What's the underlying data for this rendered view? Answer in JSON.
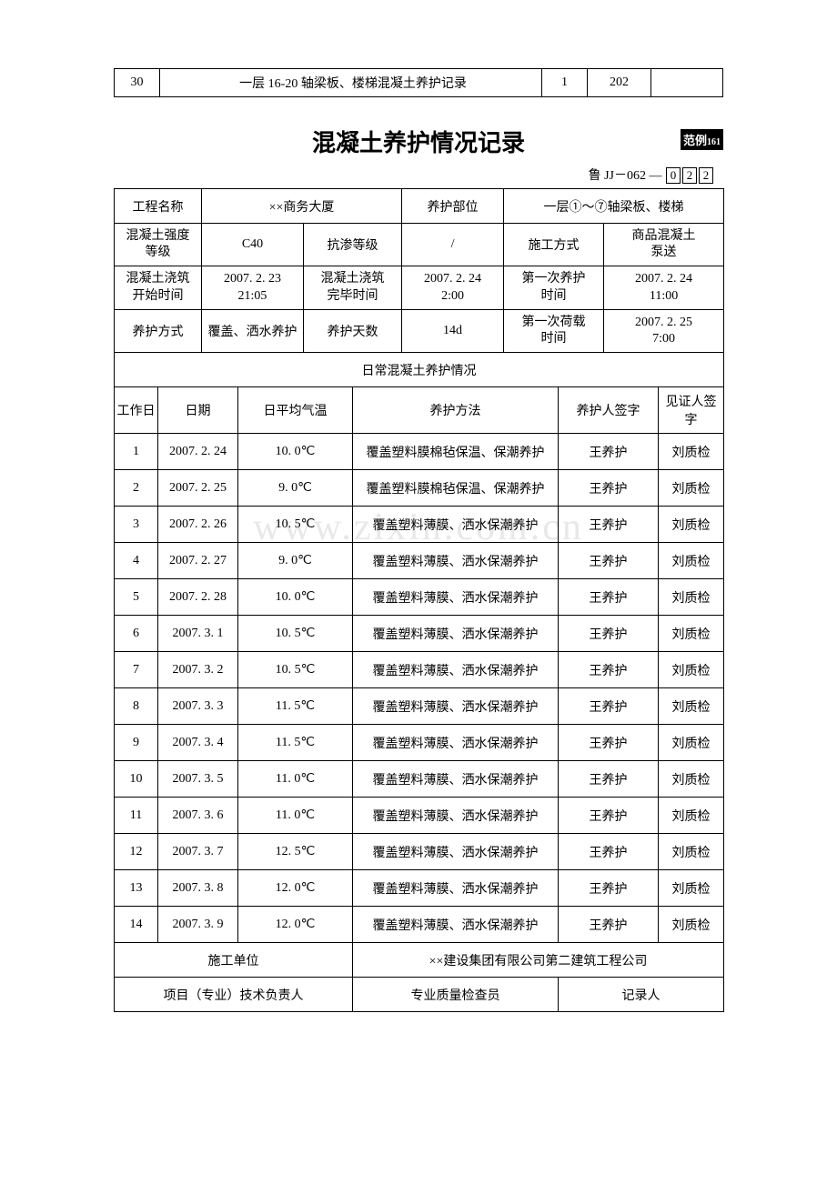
{
  "top_row": {
    "c1": "30",
    "c2": "一层 16-20 轴梁板、楼梯混凝土养护记录",
    "c3": "1",
    "c4": "202",
    "c5": ""
  },
  "title": "混凝土养护情况记录",
  "badge": "范例",
  "page_num": "161",
  "doc_code_prefix": "鲁 JJ－062 — ",
  "doc_code_boxes": [
    "0",
    "2",
    "2"
  ],
  "header": {
    "project_name_label": "工程名称",
    "project_name": "××商务大厦",
    "cure_part_label": "养护部位",
    "cure_part": "一层①～⑦轴梁板、楼梯",
    "strength_label": "混凝土强度等级",
    "strength": "C40",
    "anti_seep_label": "抗渗等级",
    "anti_seep": "/",
    "construct_method_label": "施工方式",
    "construct_method": "商品混凝土泵送",
    "pour_start_label": "混凝土浇筑开始时间",
    "pour_start": "2007. 2. 23\n21:05",
    "pour_end_label": "混凝土浇筑完毕时间",
    "pour_end": "2007. 2. 24\n2:00",
    "first_cure_label": "第一次养护时间",
    "first_cure": "2007. 2. 24\n11:00",
    "cure_method_label": "养护方式",
    "cure_method": "覆盖、洒水养护",
    "cure_days_label": "养护天数",
    "cure_days": "14d",
    "first_load_label": "第一次荷载时间",
    "first_load": "2007. 2. 25\n7:00"
  },
  "section_title": "日常混凝土养护情况",
  "columns": {
    "workday": "工作日",
    "date": "日期",
    "temp": "日平均气温",
    "method": "养护方法",
    "curer": "养护人签字",
    "witness": "见证人签字"
  },
  "log_rows": [
    {
      "day": "1",
      "date": "2007. 2. 24",
      "temp": "10. 0℃",
      "method": "覆盖塑料膜棉毡保温、保潮养护",
      "curer": "王养护",
      "witness": "刘质检"
    },
    {
      "day": "2",
      "date": "2007. 2. 25",
      "temp": "9. 0℃",
      "method": "覆盖塑料膜棉毡保温、保潮养护",
      "curer": "王养护",
      "witness": "刘质检"
    },
    {
      "day": "3",
      "date": "2007. 2. 26",
      "temp": "10. 5℃",
      "method": "覆盖塑料薄膜、洒水保潮养护",
      "curer": "王养护",
      "witness": "刘质检"
    },
    {
      "day": "4",
      "date": "2007. 2. 27",
      "temp": "9. 0℃",
      "method": "覆盖塑料薄膜、洒水保潮养护",
      "curer": "王养护",
      "witness": "刘质检"
    },
    {
      "day": "5",
      "date": "2007. 2. 28",
      "temp": "10. 0℃",
      "method": "覆盖塑料薄膜、洒水保潮养护",
      "curer": "王养护",
      "witness": "刘质检"
    },
    {
      "day": "6",
      "date": "2007. 3. 1",
      "temp": "10. 5℃",
      "method": "覆盖塑料薄膜、洒水保潮养护",
      "curer": "王养护",
      "witness": "刘质检"
    },
    {
      "day": "7",
      "date": "2007. 3. 2",
      "temp": "10. 5℃",
      "method": "覆盖塑料薄膜、洒水保潮养护",
      "curer": "王养护",
      "witness": "刘质检"
    },
    {
      "day": "8",
      "date": "2007. 3. 3",
      "temp": "11. 5℃",
      "method": "覆盖塑料薄膜、洒水保潮养护",
      "curer": "王养护",
      "witness": "刘质检"
    },
    {
      "day": "9",
      "date": "2007. 3. 4",
      "temp": "11. 5℃",
      "method": "覆盖塑料薄膜、洒水保潮养护",
      "curer": "王养护",
      "witness": "刘质检"
    },
    {
      "day": "10",
      "date": "2007. 3. 5",
      "temp": "11. 0℃",
      "method": "覆盖塑料薄膜、洒水保潮养护",
      "curer": "王养护",
      "witness": "刘质检"
    },
    {
      "day": "11",
      "date": "2007. 3. 6",
      "temp": "11. 0℃",
      "method": "覆盖塑料薄膜、洒水保潮养护",
      "curer": "王养护",
      "witness": "刘质检"
    },
    {
      "day": "12",
      "date": "2007. 3. 7",
      "temp": "12. 5℃",
      "method": "覆盖塑料薄膜、洒水保潮养护",
      "curer": "王养护",
      "witness": "刘质检"
    },
    {
      "day": "13",
      "date": "2007. 3. 8",
      "temp": "12. 0℃",
      "method": "覆盖塑料薄膜、洒水保潮养护",
      "curer": "王养护",
      "witness": "刘质检"
    },
    {
      "day": "14",
      "date": "2007. 3. 9",
      "temp": "12. 0℃",
      "method": "覆盖塑料薄膜、洒水保潮养护",
      "curer": "王养护",
      "witness": "刘质检"
    }
  ],
  "footer": {
    "construct_unit_label": "施工单位",
    "construct_unit": "××建设集团有限公司第二建筑工程公司",
    "tech_lead_label": "项目（专业）技术负责人",
    "inspector_label": "专业质量检查员",
    "recorder_label": "记录人"
  },
  "watermark": "www.zixin.com.cn"
}
